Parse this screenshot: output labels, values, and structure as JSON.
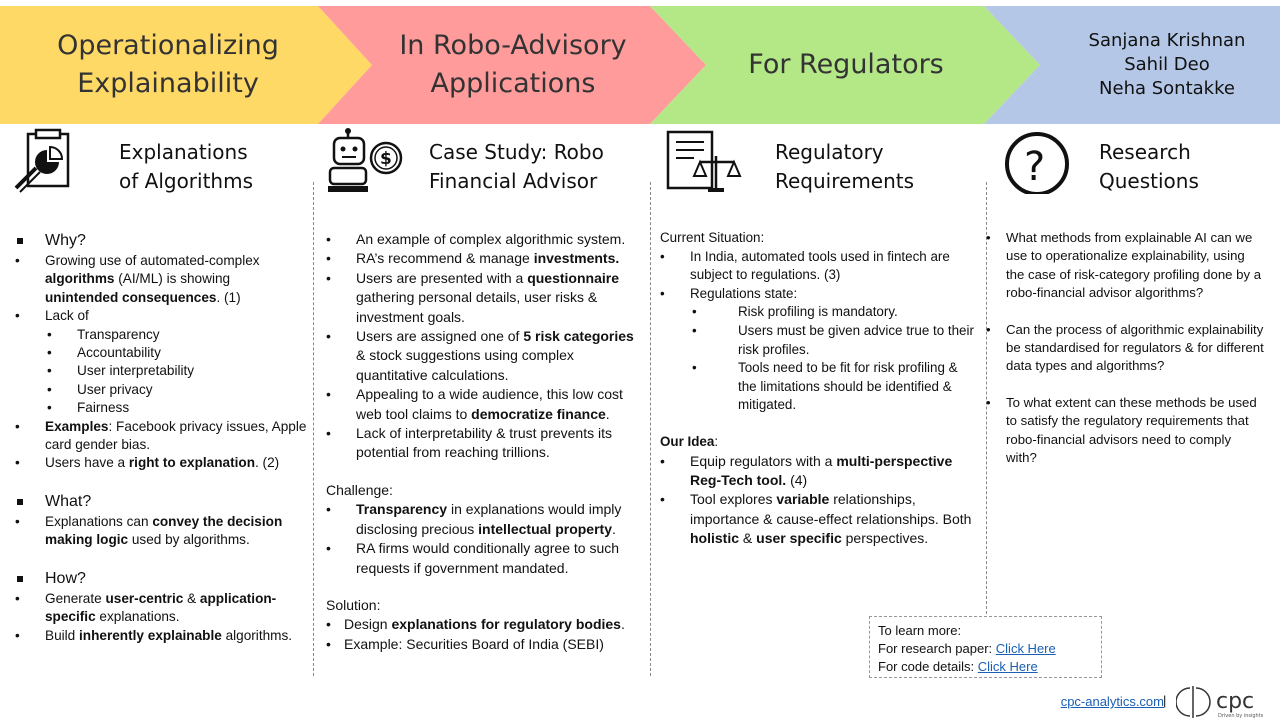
{
  "banner": {
    "seg1": [
      "Operationalizing",
      "Explainability"
    ],
    "seg2": [
      "In Robo-Advisory",
      "Applications"
    ],
    "seg3": "For Regulators",
    "authors": [
      "Sanjana Krishnan",
      "Sahil Deo",
      "Neha Sontakke"
    ],
    "colors": {
      "yellow": "#ffd966",
      "pink": "#ff9b9b",
      "green": "#b4e786",
      "blue": "#b4c7e7"
    }
  },
  "col1": {
    "title": [
      "Explanations",
      "of Algorithms"
    ],
    "why_heading": "Why?",
    "why_1": {
      "a": "Growing use of automated-complex ",
      "b": "algorithms",
      "c": " (AI/ML) is showing ",
      "d": "unintended consequences",
      "e": ". (1)"
    },
    "lack_of": "Lack of",
    "lack_items": [
      "Transparency",
      "Accountability",
      "User interpretability",
      "User privacy",
      "Fairness"
    ],
    "examples": {
      "a": "Examples",
      "b": ": Facebook privacy issues, Apple card gender bias."
    },
    "right": {
      "a": "Users have a ",
      "b": "right to explanation",
      "c": ". (2)"
    },
    "what_heading": "What?",
    "what_1": {
      "a": "Explanations  can ",
      "b": "convey the decision making logic",
      "c": " used by algorithms."
    },
    "how_heading": "How?",
    "how_1": {
      "a": "Generate ",
      "b": "user-centric",
      "c": " & ",
      "d": "application-specific",
      "e": " explanations."
    },
    "how_2": {
      "a": "Build ",
      "b": "inherently explainable",
      "c": " algorithms."
    }
  },
  "col2": {
    "title": [
      "Case Study: Robo",
      "Financial Advisor"
    ],
    "b1": "An example of complex algorithmic system.",
    "b2": {
      "a": "RA’s recommend & manage ",
      "b": "investments."
    },
    "b3": {
      "a": "Users are presented with a ",
      "b": "questionnaire",
      "c": " gathering personal details, user risks & investment goals."
    },
    "b4": {
      "a": "Users are assigned one of ",
      "b": "5 risk categories",
      "c": " & stock suggestions using complex quantitative calculations."
    },
    "b5": {
      "a": "Appealing to a wide audience, this low cost web tool claims to ",
      "b": "democratize finance",
      "c": "."
    },
    "b6": "Lack of interpretability & trust prevents its potential from reaching trillions.",
    "challenge": "Challenge:",
    "c1": {
      "a": "Transparency",
      "b": " in explanations would imply disclosing precious ",
      "c": "intellectual property",
      "d": "."
    },
    "c2": "RA firms would conditionally agree to such requests if government mandated.",
    "solution": "Solution:",
    "s1": {
      "a": "Design ",
      "b": "explanations for regulatory bodies",
      "c": "."
    },
    "s2": "Example: Securities Board of India (SEBI)"
  },
  "col3": {
    "title": [
      "Regulatory",
      "Requirements"
    ],
    "current": "Current Situation:",
    "r1": "In India, automated tools used in fintech are subject to regulations.  (3)",
    "r2": "Regulations state:",
    "sub": [
      "Risk profiling is mandatory.",
      "Users must be given advice true to their risk profiles.",
      "Tools need to be fit for risk profiling & the limitations  should be identified & mitigated."
    ],
    "idea": "Our Idea",
    "idea_colon": ":",
    "i1": {
      "a": "Equip regulators with a ",
      "b": "multi-perspective Reg-Tech tool.",
      "c": " (4)"
    },
    "i2": {
      "a": "Tool explores ",
      "b": "variable",
      "c": " relationships, importance & cause-effect relationships. Both ",
      "d": "holistic",
      "e": " & ",
      "f": "user specific",
      "g": " perspectives."
    }
  },
  "col4": {
    "title": [
      "Research",
      "Questions"
    ],
    "q1": "What methods from explainable  AI can we use to operationalize  explainability, using the case of risk-category  profiling done by a robo-financial advisor algorithms?",
    "q2": "Can the process of algorithmic explainability  be standardised  for regulators  & for different  data types and algorithms?",
    "q3": "To what extent  can these methods be used to satisfy the regulatory requirements  that robo-financial  advisors need to comply with?"
  },
  "learn": {
    "heading": "To learn more:",
    "paper_label": "For research paper: ",
    "paper_link": "Click Here",
    "code_label": "For code details:  ",
    "code_link": "Click Here"
  },
  "footer": {
    "site": "cpc-analytics.com",
    "bar": "|",
    "logo_text": "cpc",
    "tagline": "Driven by insights"
  }
}
